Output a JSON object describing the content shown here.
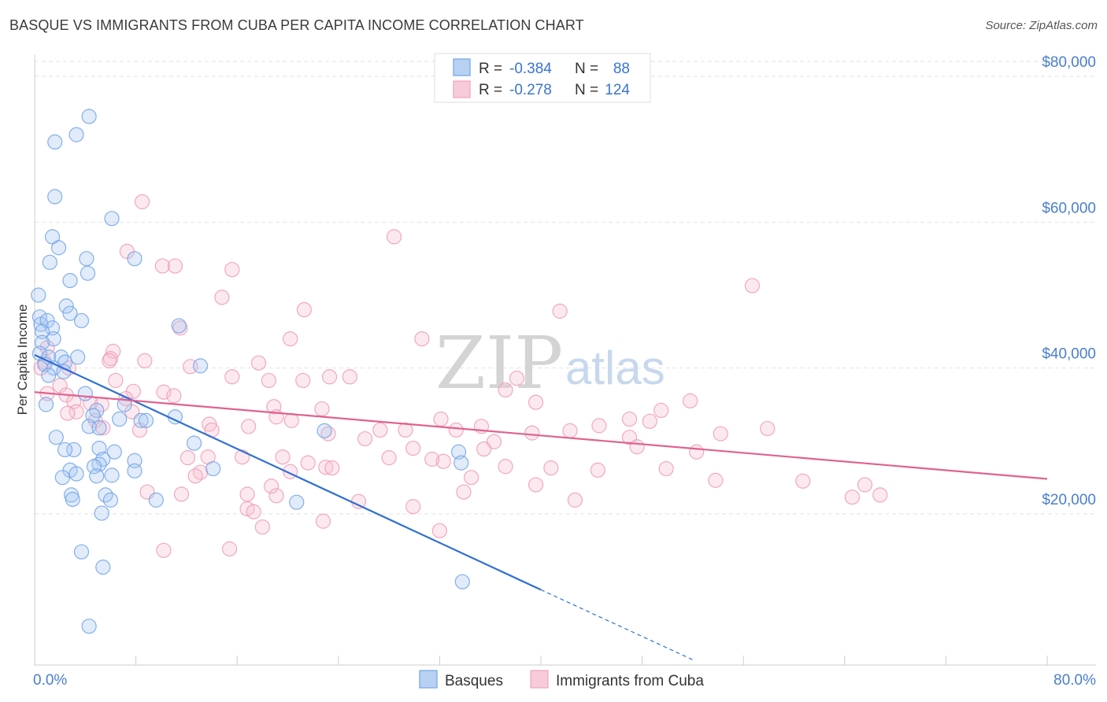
{
  "title": "BASQUE VS IMMIGRANTS FROM CUBA PER CAPITA INCOME CORRELATION CHART",
  "source": "Source: ZipAtlas.com",
  "watermark": {
    "zip": "ZIP",
    "atlas": "atlas"
  },
  "colors": {
    "blue": "#6fa3e8",
    "blue_line": "#2e6fd3",
    "pink": "#f0a3bd",
    "pink_line": "#e0628f",
    "accent_text": "#4a7ecf"
  },
  "chart_data": {
    "type": "scatter",
    "title": "BASQUE VS IMMIGRANTS FROM CUBA PER CAPITA INCOME CORRELATION CHART",
    "xlabel": "",
    "ylabel": "Per Capita Income",
    "xlim": [
      0,
      80
    ],
    "ylim": [
      0,
      82000
    ],
    "x_tick_labels": [
      "0.0%",
      "80.0%"
    ],
    "y_ticks": [
      20000,
      40000,
      60000,
      80000
    ],
    "y_tick_labels": [
      "$20,000",
      "$40,000",
      "$60,000",
      "$80,000"
    ],
    "legend": {
      "entries": [
        {
          "series": "Basques",
          "r_label": "R = ",
          "r_value": "-0.384",
          "n_label": "N = ",
          "n_value": "88"
        },
        {
          "series": "Immigrants from Cuba",
          "r_label": "R = ",
          "r_value": "-0.278",
          "n_label": "N = ",
          "n_value": "124"
        }
      ]
    },
    "series": [
      {
        "name": "Basques",
        "color": "#6fa3e8",
        "trend": {
          "x0": 0,
          "y0": 41800,
          "x1": 40,
          "y1": 9600,
          "dash_to_x": 52,
          "dash_to_y": 0
        },
        "points": [
          [
            4.3,
            74500
          ],
          [
            3.3,
            72000
          ],
          [
            1.6,
            71000
          ],
          [
            1.6,
            63500
          ],
          [
            6.1,
            60500
          ],
          [
            1.4,
            58000
          ],
          [
            1.9,
            56500
          ],
          [
            7.9,
            55000
          ],
          [
            1.2,
            54500
          ],
          [
            4.1,
            55000
          ],
          [
            4.2,
            53000
          ],
          [
            2.8,
            52000
          ],
          [
            0.3,
            50000
          ],
          [
            2.5,
            48500
          ],
          [
            2.8,
            47500
          ],
          [
            0.4,
            47000
          ],
          [
            3.7,
            46500
          ],
          [
            0.5,
            46000
          ],
          [
            1.0,
            46500
          ],
          [
            1.4,
            45500
          ],
          [
            0.6,
            45000
          ],
          [
            11.4,
            45800
          ],
          [
            1.5,
            44000
          ],
          [
            0.6,
            43500
          ],
          [
            0.4,
            42000
          ],
          [
            1.1,
            41500
          ],
          [
            2.1,
            41500
          ],
          [
            3.4,
            41500
          ],
          [
            2.4,
            40800
          ],
          [
            0.8,
            40500
          ],
          [
            1.5,
            40000
          ],
          [
            13.1,
            40300
          ],
          [
            2.3,
            39500
          ],
          [
            1.1,
            39000
          ],
          [
            4.0,
            36500
          ],
          [
            7.1,
            35000
          ],
          [
            0.9,
            35000
          ],
          [
            4.9,
            34200
          ],
          [
            4.6,
            33500
          ],
          [
            6.7,
            33000
          ],
          [
            11.1,
            33300
          ],
          [
            8.4,
            32800
          ],
          [
            8.8,
            32800
          ],
          [
            4.3,
            32000
          ],
          [
            5.1,
            31800
          ],
          [
            22.9,
            31400
          ],
          [
            1.7,
            30500
          ],
          [
            12.6,
            29700
          ],
          [
            5.1,
            29000
          ],
          [
            3.1,
            28800
          ],
          [
            2.4,
            28800
          ],
          [
            6.3,
            28500
          ],
          [
            33.5,
            28500
          ],
          [
            5.4,
            27500
          ],
          [
            7.9,
            27300
          ],
          [
            33.7,
            27000
          ],
          [
            5.1,
            26800
          ],
          [
            4.7,
            26500
          ],
          [
            2.8,
            26000
          ],
          [
            3.3,
            25500
          ],
          [
            14.1,
            26200
          ],
          [
            7.9,
            25900
          ],
          [
            6.1,
            25300
          ],
          [
            4.9,
            25200
          ],
          [
            2.2,
            25000
          ],
          [
            2.9,
            22600
          ],
          [
            5.6,
            22600
          ],
          [
            3.0,
            22000
          ],
          [
            6.0,
            21900
          ],
          [
            9.6,
            21900
          ],
          [
            20.7,
            21600
          ],
          [
            5.3,
            20100
          ],
          [
            3.7,
            14800
          ],
          [
            5.4,
            12700
          ],
          [
            33.8,
            10700
          ],
          [
            4.3,
            4600
          ]
        ]
      },
      {
        "name": "Immigrants from Cuba",
        "color": "#f0a3bd",
        "trend": {
          "x0": 0,
          "y0": 36700,
          "x1": 80,
          "y1": 24800
        },
        "points": [
          [
            8.5,
            62800
          ],
          [
            28.4,
            58000
          ],
          [
            7.3,
            56000
          ],
          [
            10.1,
            54000
          ],
          [
            11.1,
            54000
          ],
          [
            15.6,
            53500
          ],
          [
            56.7,
            51300
          ],
          [
            14.8,
            49700
          ],
          [
            21.3,
            48000
          ],
          [
            41.5,
            47800
          ],
          [
            11.5,
            45500
          ],
          [
            20.2,
            44000
          ],
          [
            30.6,
            44000
          ],
          [
            1.0,
            42800
          ],
          [
            6.2,
            42300
          ],
          [
            6.0,
            41300
          ],
          [
            5.9,
            41000
          ],
          [
            0.8,
            40800
          ],
          [
            8.7,
            41000
          ],
          [
            17.7,
            40700
          ],
          [
            12.3,
            40200
          ],
          [
            0.5,
            40000
          ],
          [
            2.7,
            40000
          ],
          [
            15.6,
            38800
          ],
          [
            23.3,
            38800
          ],
          [
            24.9,
            38800
          ],
          [
            38.1,
            38600
          ],
          [
            6.4,
            38300
          ],
          [
            18.5,
            38300
          ],
          [
            21.2,
            38300
          ],
          [
            2.0,
            37600
          ],
          [
            37.2,
            37000
          ],
          [
            7.8,
            36800
          ],
          [
            10.2,
            36700
          ],
          [
            1.0,
            36500
          ],
          [
            2.5,
            36300
          ],
          [
            11.0,
            36200
          ],
          [
            7.2,
            35800
          ],
          [
            51.8,
            35500
          ],
          [
            3.1,
            35400
          ],
          [
            4.4,
            35200
          ],
          [
            39.6,
            35300
          ],
          [
            5.3,
            35000
          ],
          [
            18.9,
            34700
          ],
          [
            22.7,
            34400
          ],
          [
            49.5,
            34200
          ],
          [
            3.3,
            34000
          ],
          [
            7.7,
            34000
          ],
          [
            2.6,
            33800
          ],
          [
            19.1,
            33300
          ],
          [
            32.1,
            33000
          ],
          [
            47.0,
            33000
          ],
          [
            4.8,
            32800
          ],
          [
            20.3,
            32800
          ],
          [
            48.6,
            32700
          ],
          [
            13.8,
            32300
          ],
          [
            44.6,
            32100
          ],
          [
            16.9,
            32000
          ],
          [
            35.3,
            32000
          ],
          [
            5.4,
            31800
          ],
          [
            8.3,
            31500
          ],
          [
            14.0,
            31500
          ],
          [
            33.3,
            31500
          ],
          [
            27.3,
            31500
          ],
          [
            29.3,
            31500
          ],
          [
            42.3,
            31400
          ],
          [
            39.3,
            31100
          ],
          [
            23.2,
            31000
          ],
          [
            57.9,
            31700
          ],
          [
            54.2,
            31000
          ],
          [
            47.0,
            30500
          ],
          [
            36.3,
            29900
          ],
          [
            26.1,
            30300
          ],
          [
            47.6,
            29200
          ],
          [
            29.9,
            29000
          ],
          [
            35.5,
            28900
          ],
          [
            52.3,
            28500
          ],
          [
            16.4,
            27800
          ],
          [
            12.1,
            27700
          ],
          [
            13.7,
            27800
          ],
          [
            19.6,
            27800
          ],
          [
            28.0,
            27700
          ],
          [
            31.4,
            27500
          ],
          [
            32.3,
            27200
          ],
          [
            21.6,
            27000
          ],
          [
            23.0,
            26400
          ],
          [
            37.2,
            26500
          ],
          [
            44.5,
            26000
          ],
          [
            49.9,
            26200
          ],
          [
            40.8,
            26300
          ],
          [
            20.2,
            25800
          ],
          [
            23.5,
            26300
          ],
          [
            13.1,
            25700
          ],
          [
            12.7,
            25200
          ],
          [
            34.5,
            25000
          ],
          [
            53.8,
            24600
          ],
          [
            60.7,
            24500
          ],
          [
            39.6,
            24000
          ],
          [
            65.6,
            24000
          ],
          [
            18.7,
            23800
          ],
          [
            8.9,
            23000
          ],
          [
            33.9,
            23000
          ],
          [
            11.6,
            22700
          ],
          [
            16.8,
            22700
          ],
          [
            19.1,
            22500
          ],
          [
            66.8,
            22600
          ],
          [
            64.6,
            22300
          ],
          [
            42.7,
            21900
          ],
          [
            25.6,
            21700
          ],
          [
            29.9,
            21000
          ],
          [
            16.8,
            20700
          ],
          [
            17.3,
            20300
          ],
          [
            22.8,
            19000
          ],
          [
            18.0,
            18200
          ],
          [
            32.0,
            17700
          ],
          [
            10.2,
            15000
          ],
          [
            15.4,
            15200
          ]
        ]
      }
    ]
  }
}
